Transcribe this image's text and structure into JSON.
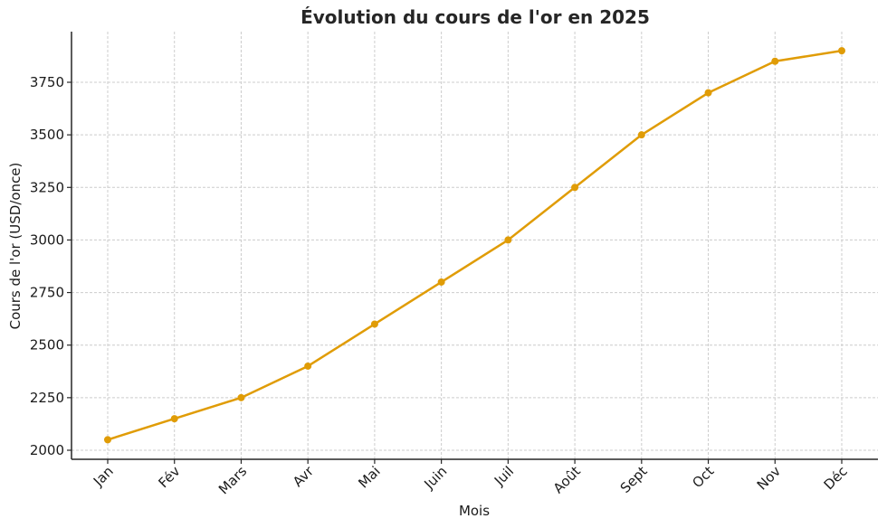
{
  "chart_data": {
    "type": "line",
    "title": "Évolution du cours de l'or en 2025",
    "xlabel": "Mois",
    "ylabel": "Cours de l'or (USD/once)",
    "categories": [
      "Jan",
      "Fév",
      "Mars",
      "Avr",
      "Mai",
      "Juin",
      "Juil",
      "Août",
      "Sept",
      "Oct",
      "Nov",
      "Déc"
    ],
    "series": [
      {
        "name": "Cours de l'or",
        "color": "#E09C06",
        "values": [
          2050,
          2150,
          2250,
          2400,
          2600,
          2800,
          3000,
          3250,
          3500,
          3700,
          3850,
          3900
        ]
      }
    ],
    "yticks": [
      2000,
      2250,
      2500,
      2750,
      3000,
      3250,
      3500,
      3750
    ],
    "ylim": [
      1955,
      3985
    ],
    "grid": true,
    "legend": null
  }
}
